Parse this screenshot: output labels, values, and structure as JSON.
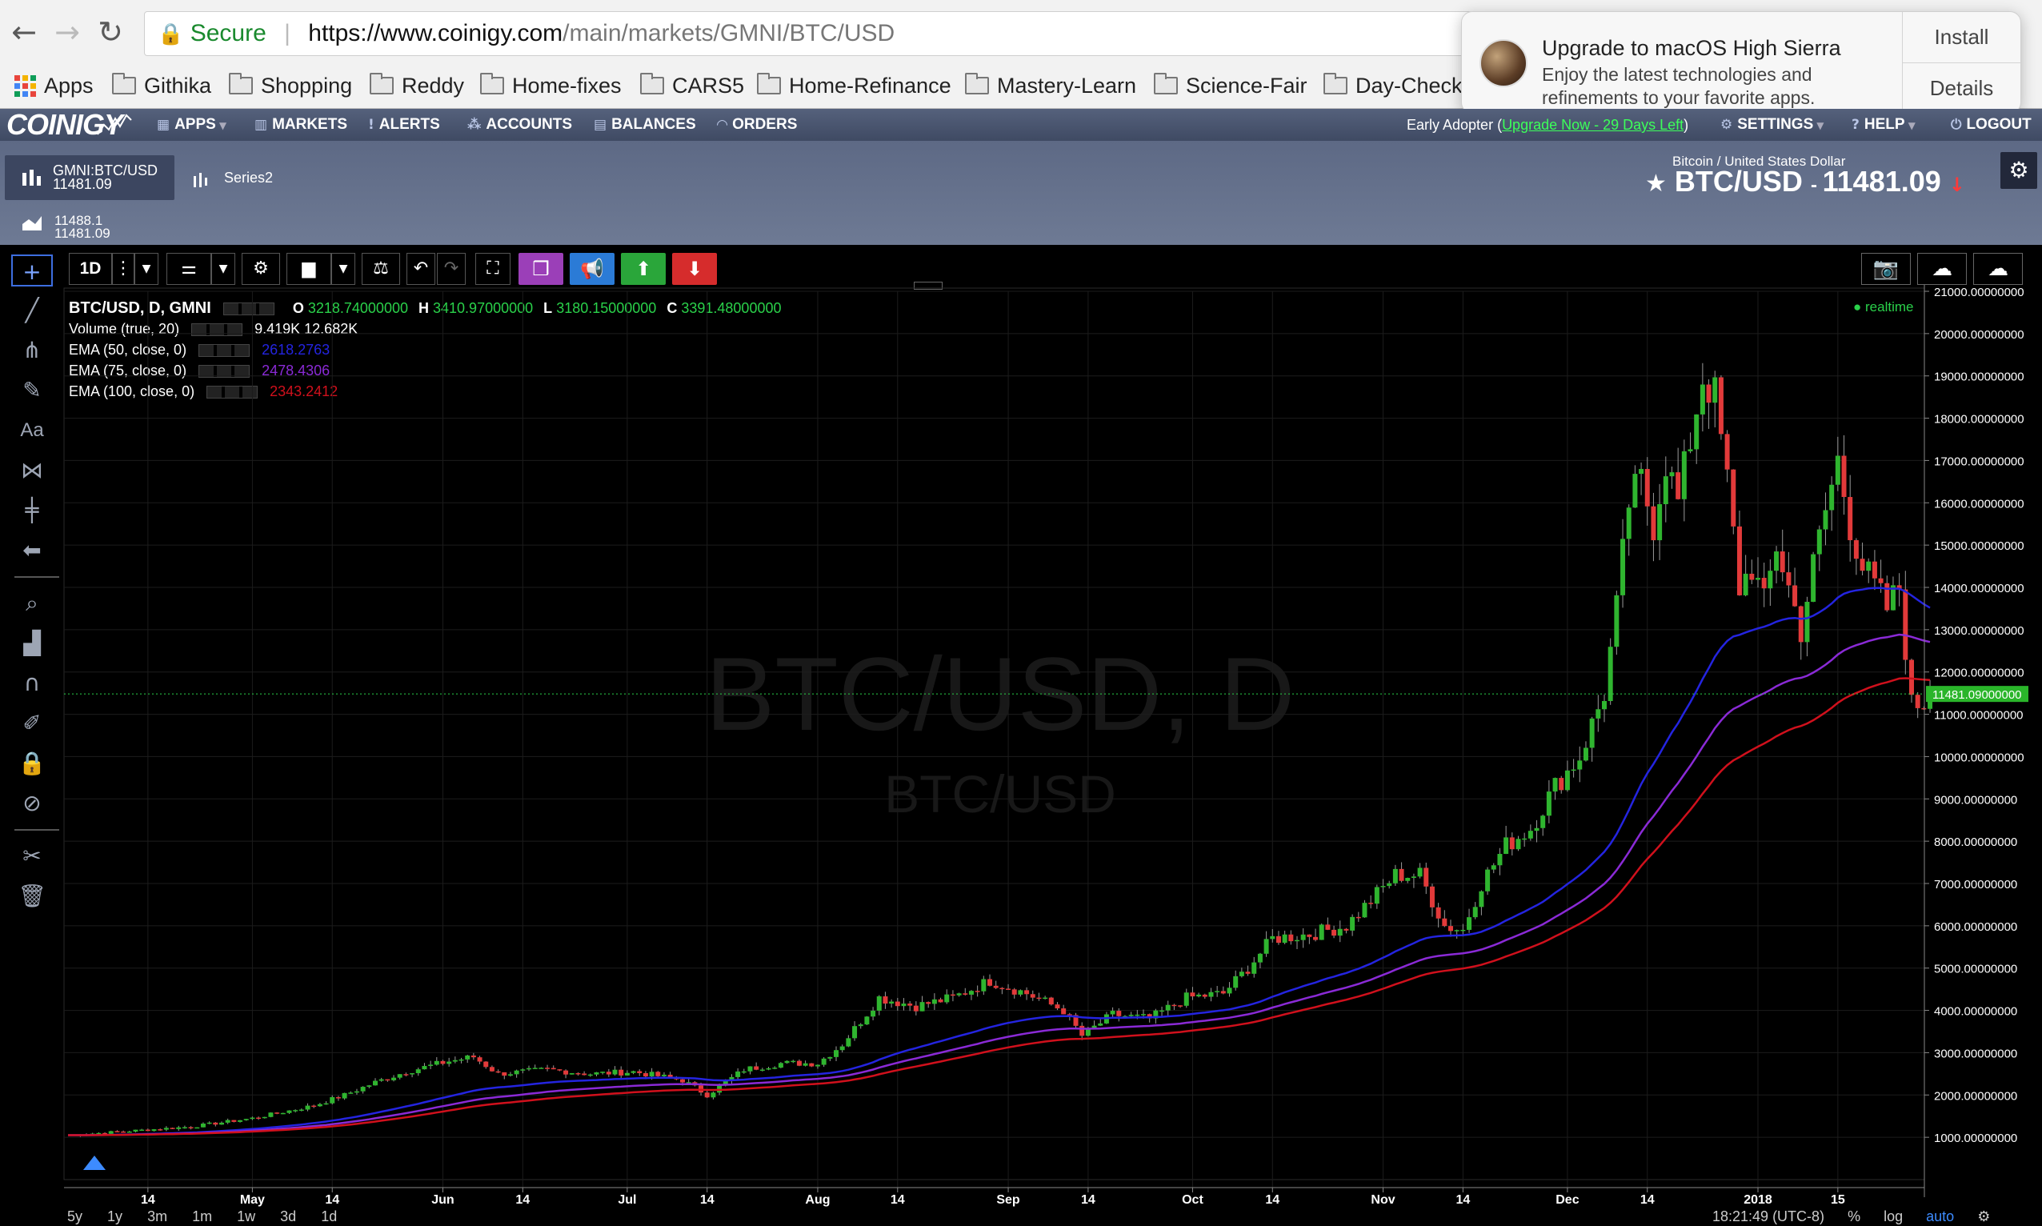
{
  "browser": {
    "secure_label": "Secure",
    "url_origin": "https://www.coinigy.com",
    "url_path": "/main/markets/GMNI/BTC/USD",
    "bookmarks": [
      "Apps",
      "Githika",
      "Shopping",
      "Reddy",
      "Home-fixes",
      "CARS5",
      "Home-Refinance",
      "Mastery-Learn",
      "Science-Fair",
      "Day-Check"
    ]
  },
  "notification": {
    "title": "Upgrade to macOS High Sierra",
    "body": "Enjoy the latest technologies and refinements to your favorite apps.",
    "install": "Install",
    "details": "Details"
  },
  "nav": {
    "logo": "COINIGY",
    "items": [
      "APPS",
      "MARKETS",
      "ALERTS",
      "ACCOUNTS",
      "BALANCES",
      "ORDERS"
    ],
    "early_prefix": "Early Adopter (",
    "early_link": "Upgrade Now - 29 Days Left",
    "early_suffix": ")",
    "settings": "SETTINGS",
    "help": "HELP",
    "logout": "LOGOUT"
  },
  "header": {
    "tab_label": "GMNI:BTC/USD",
    "tab_price": "11481.09",
    "series2": "Series2",
    "mini_high": "11488.1",
    "mini_low": "11481.09",
    "pair_sub": "Bitcoin / United States Dollar",
    "pair": "BTC/USD",
    "pair_price": "11481.09"
  },
  "toolbar": {
    "interval": "1D"
  },
  "legend": {
    "symbol": "BTC/USD, D, GMNI",
    "o_label": "O",
    "o": "3218.74000000",
    "h_label": "H",
    "h": "3410.97000000",
    "l_label": "L",
    "l": "3180.15000000",
    "c_label": "C",
    "c": "3391.48000000",
    "volume_label": "Volume (true, 20)",
    "volume_values": "9.419K 12.682K",
    "ema50_label": "EMA (50, close, 0)",
    "ema50": "2618.2763",
    "ema75_label": "EMA (75, close, 0)",
    "ema75": "2478.4306",
    "ema100_label": "EMA (100, close, 0)",
    "ema100": "2343.2412",
    "realtime": "realtime"
  },
  "colors": {
    "up": "#2fb52f",
    "down": "#e23a3a",
    "ema50": "#2424e0",
    "ema75": "#8a2ad6",
    "ema100": "#d0101c"
  },
  "chart_data": {
    "type": "candlestick",
    "watermark": "BTC/USD, D",
    "watermark_sub": "BTC/USD",
    "ylim": [
      0,
      21000
    ],
    "y_ticks": [
      "1000.00000000",
      "2000.00000000",
      "3000.00000000",
      "4000.00000000",
      "5000.00000000",
      "6000.00000000",
      "7000.00000000",
      "8000.00000000",
      "9000.00000000",
      "10000.00000000",
      "11000.00000000",
      "12000.00000000",
      "13000.00000000",
      "14000.00000000",
      "15000.00000000",
      "16000.00000000",
      "17000.00000000",
      "18000.00000000",
      "19000.00000000",
      "20000.00000000",
      "21000.00000000"
    ],
    "last_price_label": "11481.09000000",
    "last_price": 11481.09,
    "x_ticks": [
      {
        "day": 13,
        "label": "14"
      },
      {
        "day": 30,
        "label": "May"
      },
      {
        "day": 43,
        "label": "14"
      },
      {
        "day": 61,
        "label": "Jun"
      },
      {
        "day": 74,
        "label": "14"
      },
      {
        "day": 91,
        "label": "Jul"
      },
      {
        "day": 104,
        "label": "14"
      },
      {
        "day": 122,
        "label": "Aug"
      },
      {
        "day": 135,
        "label": "14"
      },
      {
        "day": 153,
        "label": "Sep"
      },
      {
        "day": 166,
        "label": "14"
      },
      {
        "day": 183,
        "label": "Oct"
      },
      {
        "day": 196,
        "label": "14"
      },
      {
        "day": 214,
        "label": "Nov"
      },
      {
        "day": 227,
        "label": "14"
      },
      {
        "day": 244,
        "label": "Dec"
      },
      {
        "day": 257,
        "label": "14"
      },
      {
        "day": 275,
        "label": "2018"
      },
      {
        "day": 288,
        "label": "15"
      }
    ],
    "anchors": [
      [
        0,
        1050
      ],
      [
        10,
        1150
      ],
      [
        20,
        1250
      ],
      [
        30,
        1450
      ],
      [
        40,
        1750
      ],
      [
        45,
        2000
      ],
      [
        50,
        2300
      ],
      [
        55,
        2550
      ],
      [
        62,
        2800
      ],
      [
        66,
        2900
      ],
      [
        70,
        2500
      ],
      [
        78,
        2600
      ],
      [
        85,
        2500
      ],
      [
        92,
        2550
      ],
      [
        100,
        2350
      ],
      [
        104,
        2000
      ],
      [
        110,
        2600
      ],
      [
        116,
        2750
      ],
      [
        122,
        2750
      ],
      [
        126,
        3200
      ],
      [
        132,
        4300
      ],
      [
        138,
        4100
      ],
      [
        144,
        4300
      ],
      [
        150,
        4700
      ],
      [
        156,
        4400
      ],
      [
        162,
        4000
      ],
      [
        165,
        3400
      ],
      [
        170,
        3900
      ],
      [
        176,
        3800
      ],
      [
        182,
        4300
      ],
      [
        188,
        4400
      ],
      [
        192,
        5000
      ],
      [
        196,
        5700
      ],
      [
        202,
        5800
      ],
      [
        208,
        6000
      ],
      [
        212,
        6600
      ],
      [
        216,
        7200
      ],
      [
        220,
        7200
      ],
      [
        224,
        6000
      ],
      [
        227,
        5900
      ],
      [
        230,
        7000
      ],
      [
        234,
        7900
      ],
      [
        238,
        8300
      ],
      [
        242,
        9300
      ],
      [
        246,
        10000
      ],
      [
        250,
        11500
      ],
      [
        252,
        13500
      ],
      [
        254,
        16000
      ],
      [
        256,
        16500
      ],
      [
        258,
        15500
      ],
      [
        260,
        17000
      ],
      [
        262,
        16000
      ],
      [
        264,
        17500
      ],
      [
        266,
        19000
      ],
      [
        268,
        18500
      ],
      [
        270,
        16500
      ],
      [
        272,
        14000
      ],
      [
        274,
        14500
      ],
      [
        276,
        13600
      ],
      [
        278,
        15000
      ],
      [
        280,
        14000
      ],
      [
        282,
        13000
      ],
      [
        284,
        14500
      ],
      [
        286,
        15800
      ],
      [
        288,
        17000
      ],
      [
        290,
        15500
      ],
      [
        292,
        14500
      ],
      [
        294,
        14000
      ],
      [
        296,
        13500
      ],
      [
        298,
        14000
      ],
      [
        300,
        11200
      ],
      [
        302,
        11300
      ],
      [
        303,
        11481
      ]
    ]
  },
  "bottom": {
    "time_buttons": [
      "5y",
      "1y",
      "3m",
      "1m",
      "1w",
      "3d",
      "1d"
    ],
    "clock": "18:21:49 (UTC-8)",
    "percent": "%",
    "log": "log",
    "auto": "auto"
  }
}
